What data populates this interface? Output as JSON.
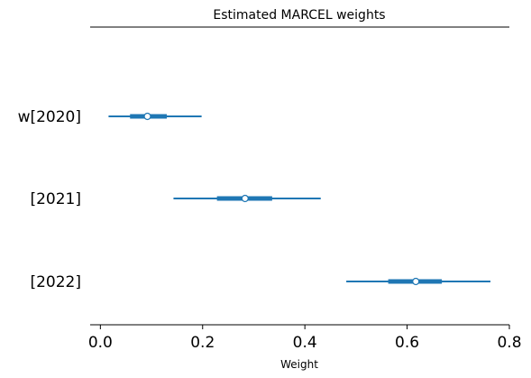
{
  "chart_data": {
    "type": "forest",
    "title": "Estimated MARCEL weights",
    "xlabel": "Weight",
    "ylabel": "",
    "xlim": [
      -0.02,
      0.8
    ],
    "xticks": [
      0.0,
      0.2,
      0.4,
      0.6,
      0.8
    ],
    "xtick_labels": [
      "0.0",
      "0.2",
      "0.4",
      "0.6",
      "0.8"
    ],
    "grid": false,
    "color": "#1f77b4",
    "categories": [
      "w[2020]",
      "[2021]",
      "[2022]"
    ],
    "series": [
      {
        "label": "w[2020]",
        "point": 0.092,
        "iqr": [
          0.058,
          0.13
        ],
        "hdi": [
          0.016,
          0.198
        ]
      },
      {
        "label": "[2021]",
        "point": 0.283,
        "iqr": [
          0.228,
          0.336
        ],
        "hdi": [
          0.143,
          0.431
        ]
      },
      {
        "label": "[2022]",
        "point": 0.617,
        "iqr": [
          0.563,
          0.668
        ],
        "hdi": [
          0.481,
          0.763
        ]
      }
    ]
  }
}
